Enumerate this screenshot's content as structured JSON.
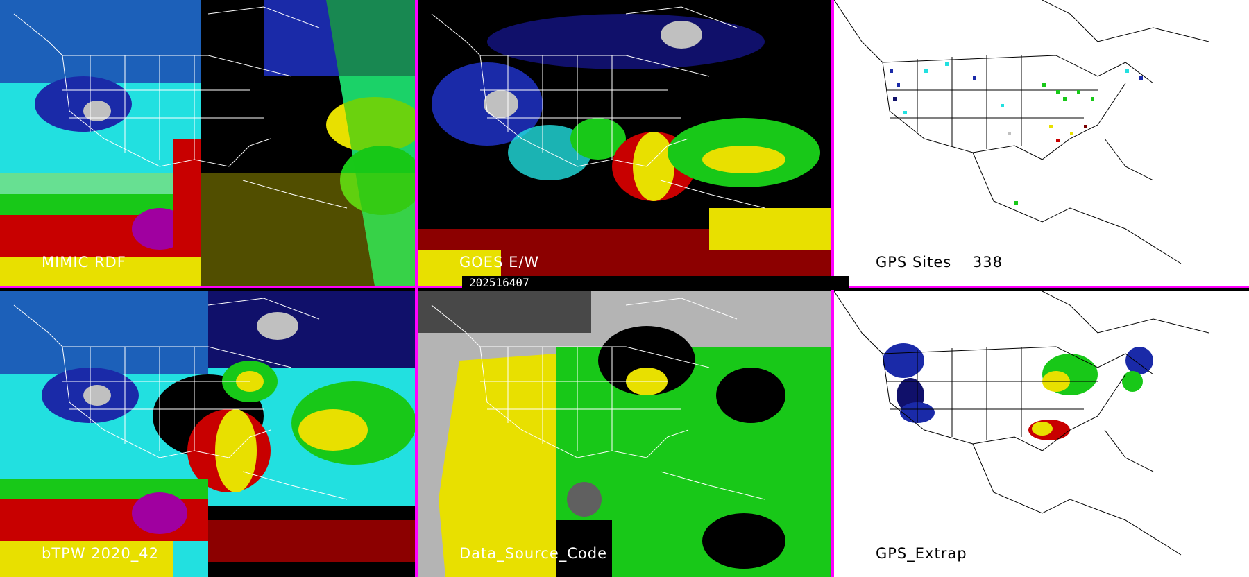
{
  "panels": {
    "top_left": {
      "label": "MIMIC RDF"
    },
    "top_middle": {
      "label": "GOES E/W"
    },
    "top_right": {
      "label": "GPS Sites",
      "count": "338"
    },
    "bottom_left": {
      "label": "bTPW 2020_42"
    },
    "bottom_middle": {
      "label": "Data_Source_Code"
    },
    "bottom_right": {
      "label": "GPS_Extrap"
    }
  },
  "timestamp": "202516407",
  "colors": {
    "separator": "#ff00ff",
    "cyan": "#22e0e0",
    "blue": "#1a2aa8",
    "navy": "#10106a",
    "green": "#18c818",
    "yellow": "#e8e000",
    "red": "#c80000",
    "darkred": "#7a0000",
    "magenta": "#a000a0",
    "gray": "#b4b4b4",
    "land_bg_white": "#ffffff"
  }
}
